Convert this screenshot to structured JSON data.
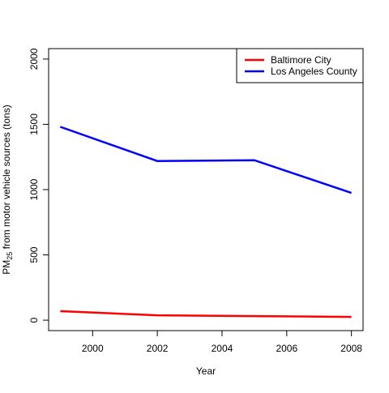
{
  "chart_data": {
    "type": "line",
    "x_label": "Year",
    "y_label": [
      "PM",
      "25",
      " from motor vehicle sources (tons)"
    ],
    "x": [
      1999,
      2002,
      2005,
      2008
    ],
    "series": [
      {
        "name": "Baltimore City",
        "color": "#ff0000",
        "values": [
          69,
          37,
          31,
          25
        ]
      },
      {
        "name": "Los Angeles County",
        "color": "#0000ff",
        "values": [
          1481,
          1219,
          1225,
          975
        ]
      }
    ],
    "xlim": [
      1998.64,
      2008.36
    ],
    "xticks": [
      2000,
      2002,
      2004,
      2006,
      2008
    ],
    "ylim": [
      -80,
      2080
    ],
    "yticks": [
      0,
      500,
      1000,
      1500,
      2000
    ],
    "legend": "topright",
    "grid": false
  }
}
